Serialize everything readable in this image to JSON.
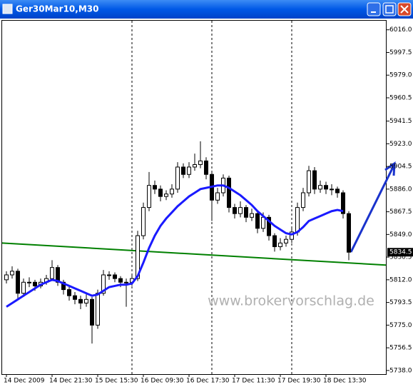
{
  "chart_data": {
    "type": "candlestick",
    "title": "Ger30Mar10,M30",
    "annotations": [
      "www.brokervorschlag.de"
    ],
    "categories": [
      "14 Dec 2009",
      null,
      null,
      null,
      null,
      null,
      null,
      null,
      "14 Dec 21:30",
      null,
      null,
      null,
      null,
      null,
      null,
      null,
      "15 Dec 15:30",
      null,
      null,
      null,
      null,
      null,
      null,
      null,
      "16 Dec 09:30",
      null,
      null,
      null,
      null,
      null,
      null,
      null,
      "16 Dec 17:30",
      null,
      null,
      null,
      null,
      null,
      null,
      null,
      "17 Dec 11:30",
      null,
      null,
      null,
      null,
      null,
      null,
      null,
      "17 Dec 19:30",
      null,
      null,
      null,
      null,
      null,
      null,
      null,
      "18 Dec 13:30",
      null,
      null,
      null,
      null
    ],
    "open": [
      5812,
      5816,
      5819,
      5801,
      5810,
      5810,
      5807,
      5810,
      5813,
      5822,
      5810,
      5804,
      5799,
      5796,
      5793,
      5796,
      5775,
      5801,
      5816,
      5816,
      5813,
      5810,
      5810,
      5813,
      5848,
      5871,
      5889,
      5886,
      5880,
      5882,
      5886,
      5904,
      5898,
      5904,
      5906,
      5909,
      5898,
      5877,
      5883,
      5895,
      5871,
      5866,
      5871,
      5863,
      5866,
      5854,
      5863,
      5848,
      5839,
      5842,
      5845,
      5851,
      5871,
      5883,
      5901,
      5886,
      5889,
      5886,
      5886,
      5883,
      5866
    ],
    "high": [
      5819,
      5823,
      5821,
      5813,
      5814,
      5812,
      5813,
      5816,
      5828,
      5824,
      5812,
      5807,
      5802,
      5799,
      5800,
      5798,
      5804,
      5820,
      5819,
      5818,
      5815,
      5813,
      5817,
      5852,
      5875,
      5900,
      5893,
      5889,
      5885,
      5890,
      5908,
      5907,
      5908,
      5915,
      5925,
      5912,
      5901,
      5887,
      5898,
      5897,
      5874,
      5876,
      5873,
      5870,
      5868,
      5867,
      5865,
      5850,
      5846,
      5848,
      5855,
      5875,
      5887,
      5905,
      5904,
      5893,
      5892,
      5890,
      5888,
      5885,
      5868
    ],
    "low": [
      5809,
      5813,
      5797,
      5798,
      5806,
      5803,
      5805,
      5808,
      5811,
      5807,
      5800,
      5795,
      5792,
      5788,
      5790,
      5760,
      5772,
      5799,
      5812,
      5810,
      5806,
      5790,
      5807,
      5811,
      5845,
      5868,
      5882,
      5876,
      5877,
      5879,
      5883,
      5895,
      5895,
      5901,
      5903,
      5894,
      5860,
      5874,
      5880,
      5867,
      5862,
      5863,
      5859,
      5860,
      5850,
      5851,
      5844,
      5835,
      5836,
      5839,
      5842,
      5848,
      5868,
      5880,
      5882,
      5883,
      5882,
      5881,
      5879,
      5862,
      5828
    ],
    "close": [
      5816,
      5819,
      5801,
      5810,
      5810,
      5807,
      5810,
      5813,
      5822,
      5810,
      5804,
      5799,
      5796,
      5793,
      5796,
      5775,
      5801,
      5816,
      5816,
      5813,
      5810,
      5810,
      5813,
      5848,
      5871,
      5889,
      5886,
      5880,
      5882,
      5886,
      5904,
      5898,
      5904,
      5906,
      5909,
      5898,
      5877,
      5883,
      5895,
      5871,
      5866,
      5871,
      5863,
      5866,
      5854,
      5863,
      5848,
      5839,
      5842,
      5845,
      5851,
      5871,
      5883,
      5901,
      5886,
      5889,
      5886,
      5886,
      5883,
      5866,
      5834.5
    ],
    "series": [
      {
        "color": "#1a1aff",
        "values": [
          5790,
          5793,
          5796,
          5799,
          5802,
          5805,
          5808,
          5810,
          5812,
          5811,
          5809,
          5807,
          5805,
          5803,
          5801,
          5799,
          5800,
          5803,
          5806,
          5807,
          5808,
          5808,
          5809,
          5815,
          5826,
          5838,
          5848,
          5856,
          5862,
          5867,
          5872,
          5876,
          5880,
          5883,
          5886,
          5887,
          5888,
          5889,
          5889,
          5887,
          5884,
          5881,
          5877,
          5873,
          5868,
          5864,
          5860,
          5856,
          5853,
          5850,
          5849,
          5851,
          5855,
          5860,
          5862,
          5864,
          5866,
          5868,
          5869,
          5868,
          null
        ]
      }
    ],
    "trendline": {
      "color": "#008000",
      "values": [
        5842,
        5824
      ]
    },
    "ylim": [
      5735,
      6024
    ],
    "yticks": [
      {
        "value": 6016,
        "label": "6016.0"
      },
      {
        "value": 5997.5,
        "label": "5997.5"
      },
      {
        "value": 5979,
        "label": "5979.0"
      },
      {
        "value": 5960.5,
        "label": "5960.5"
      },
      {
        "value": 5941.5,
        "label": "5941.5"
      },
      {
        "value": 5923,
        "label": "5923.0"
      },
      {
        "value": 5904.5,
        "label": "5904.5"
      },
      {
        "value": 5886,
        "label": "5886.0"
      },
      {
        "value": 5867.5,
        "label": "5867.5"
      },
      {
        "value": 5849,
        "label": "5849.0"
      },
      {
        "value": 5830.5,
        "label": "5830.5"
      },
      {
        "value": 5812,
        "label": "5812.0"
      },
      {
        "value": 5793.5,
        "label": "5793.5"
      },
      {
        "value": 5775,
        "label": "5775.0"
      },
      {
        "value": 5756.5,
        "label": "5756.5"
      },
      {
        "value": 5738,
        "label": "5738.0"
      }
    ]
  }
}
